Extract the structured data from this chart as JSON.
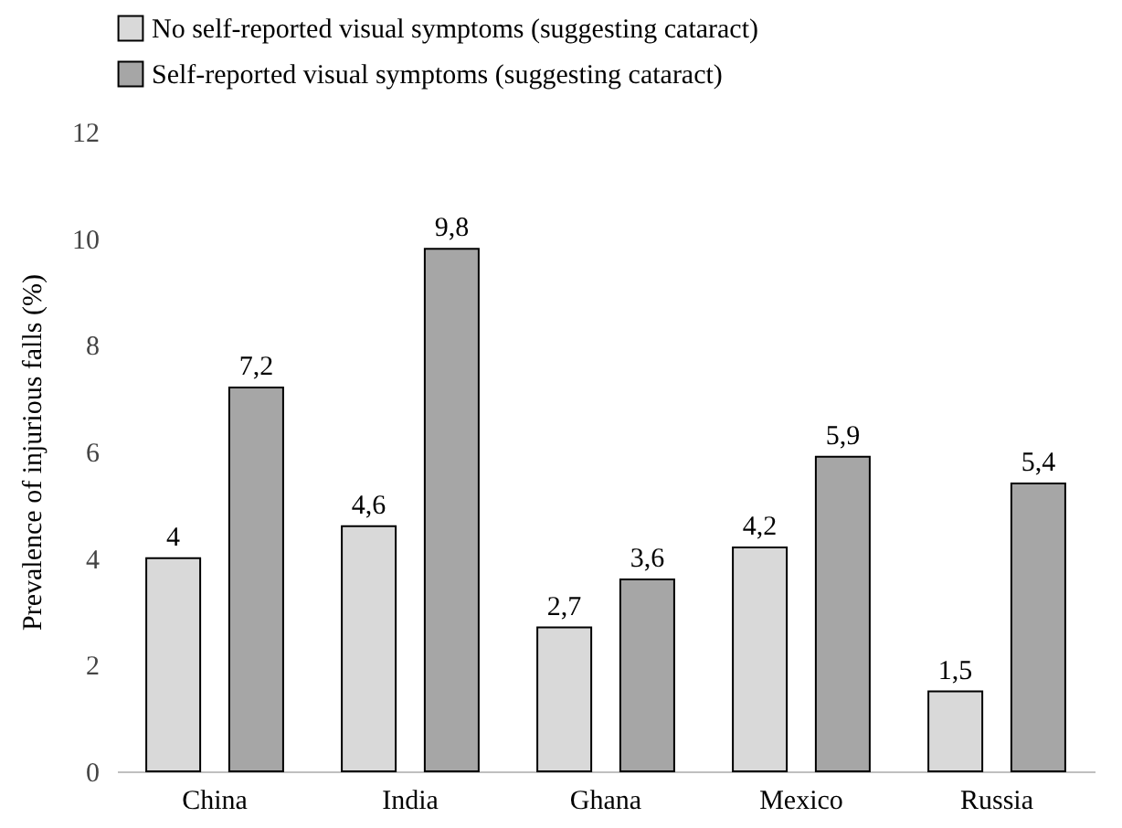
{
  "chart_data": {
    "type": "bar",
    "ylabel": "Prevalence of injurious falls (%)",
    "categories": [
      "China",
      "India",
      "Ghana",
      "Mexico",
      "Russia"
    ],
    "series": [
      {
        "name": "No self-reported visual symptoms (suggesting cataract)",
        "color": "#d9d9d9",
        "values": [
          4,
          4.6,
          2.7,
          4.2,
          1.5
        ],
        "value_labels": [
          "4",
          "4,6",
          "2,7",
          "4,2",
          "1,5"
        ]
      },
      {
        "name": "Self-reported visual symptoms (suggesting cataract)",
        "color": "#a6a6a6",
        "values": [
          7.2,
          9.8,
          3.6,
          5.9,
          5.4
        ],
        "value_labels": [
          "7,2",
          "9,8",
          "3,6",
          "5,9",
          "5,4"
        ]
      }
    ],
    "ylim": [
      0,
      12
    ],
    "yticks": [
      0,
      2,
      4,
      6,
      8,
      10,
      12
    ],
    "grid": false,
    "legend": "top"
  }
}
